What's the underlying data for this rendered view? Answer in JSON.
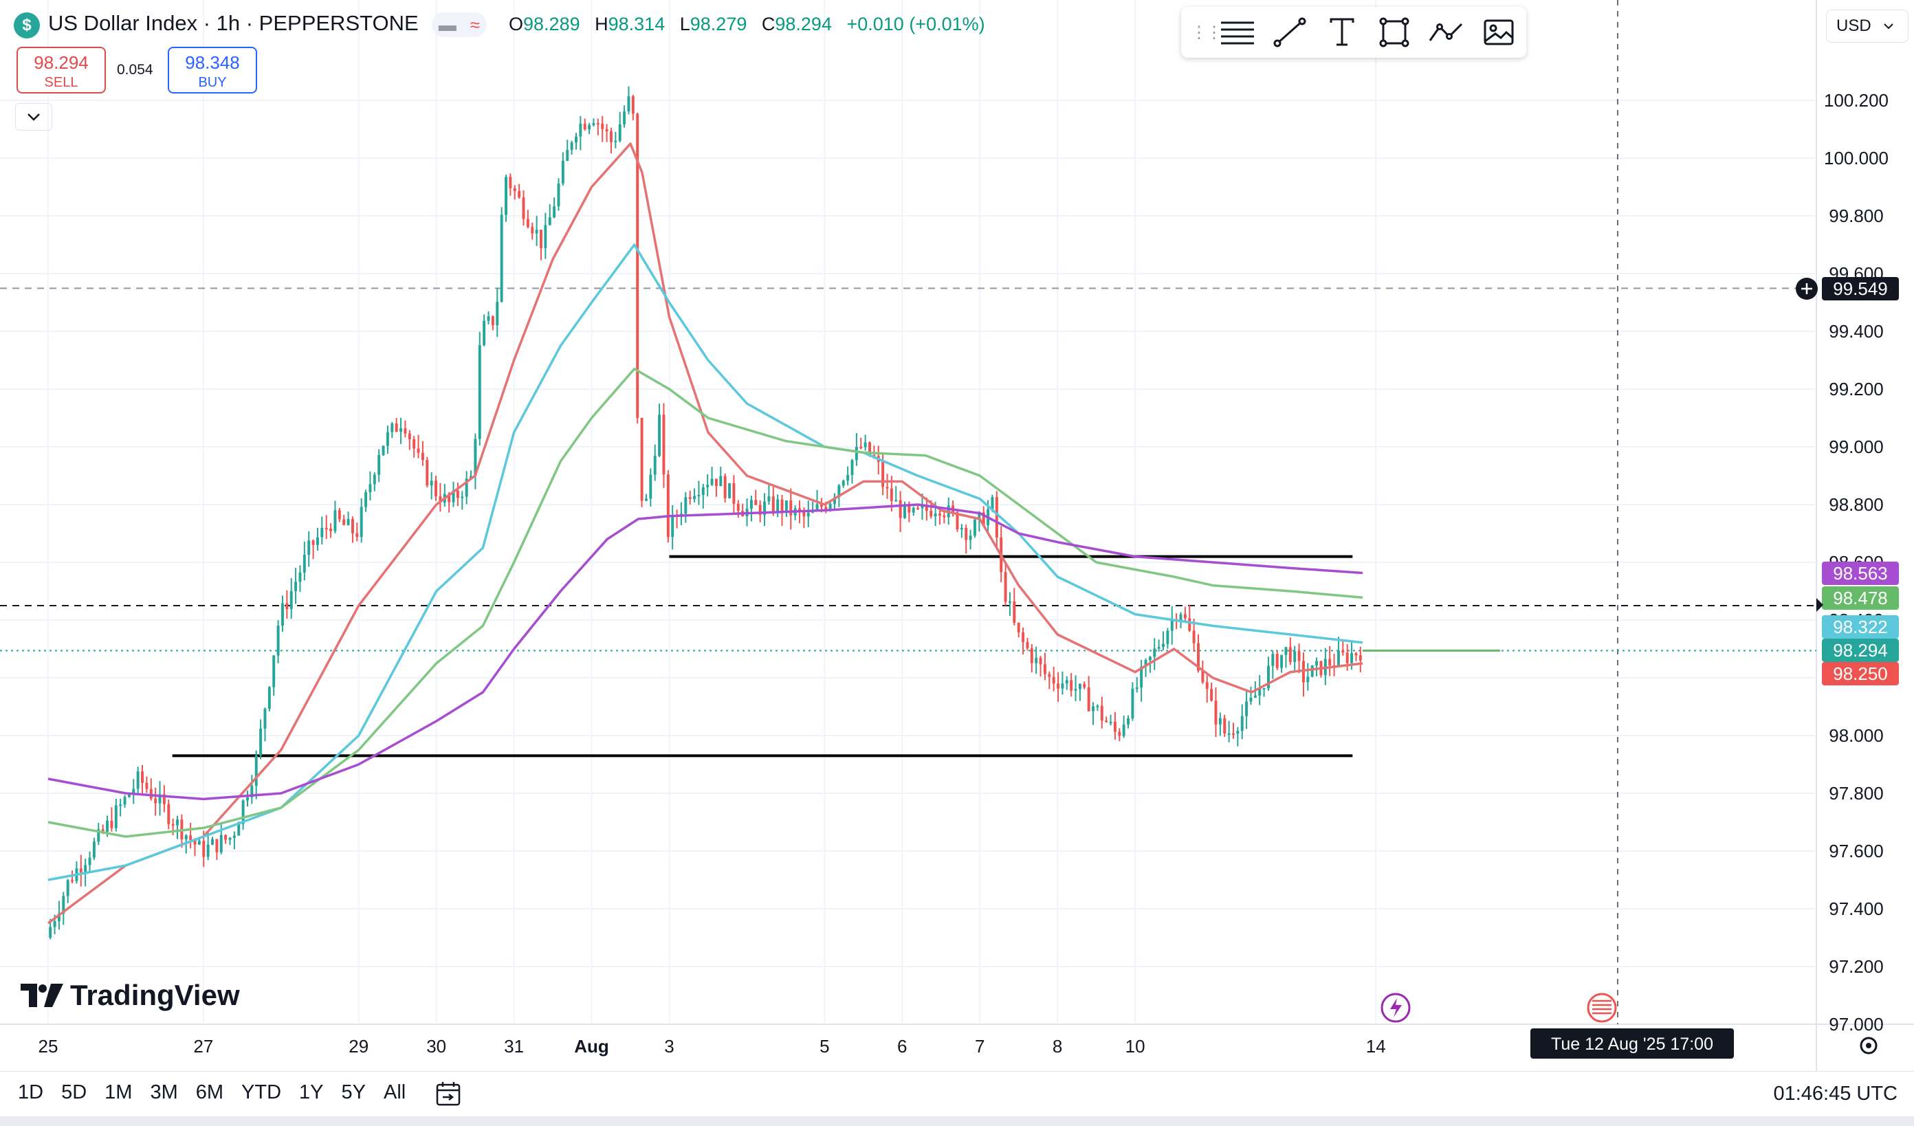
{
  "header": {
    "logo_glyph": "$",
    "title": "US Dollar Index · 1h · PEPPERSTONE",
    "mode_icons": [
      "minus-icon",
      "approx-icon"
    ],
    "ohlc": {
      "o_label": "O",
      "o": "98.289",
      "h_label": "H",
      "h": "98.314",
      "l_label": "L",
      "l": "98.279",
      "c_label": "C",
      "c": "98.294",
      "change": "+0.010 (+0.01%)"
    },
    "sell": {
      "price": "98.294",
      "label": "SELL"
    },
    "buy": {
      "price": "98.348",
      "label": "BUY"
    },
    "spread": "0.054",
    "currency": "USD"
  },
  "drawing_toolbar": [
    "grip-icon",
    "lines-icon",
    "trendline-icon",
    "text-icon",
    "rectangle-icon",
    "path-icon",
    "image-icon"
  ],
  "colors": {
    "up": "#26a69a",
    "down": "#ef5350",
    "ema_red": "#e57373",
    "ema_cyan": "#5bc8dc",
    "ema_green": "#81c784",
    "ema_purple": "#a64dd1"
  },
  "price_axis": {
    "labels": [
      "100.200",
      "100.000",
      "99.800",
      "99.600",
      "99.400",
      "99.200",
      "99.000",
      "98.800",
      "98.600",
      "98.400",
      "98.200",
      "98.000",
      "97.800",
      "97.600",
      "97.400",
      "97.200",
      "97.000"
    ],
    "tags": [
      {
        "value": "99.549",
        "color": "#131722"
      },
      {
        "value": "98.563",
        "color": "#a64dd1"
      },
      {
        "value": "98.478",
        "color": "#66bb6a"
      },
      {
        "value": "98.322",
        "color": "#5bc8dc"
      },
      {
        "value": "98.294",
        "color": "#26a69a"
      },
      {
        "value": "98.250",
        "color": "#ef5350"
      }
    ]
  },
  "time_axis": {
    "labels": [
      "25",
      "27",
      "29",
      "30",
      "31",
      "Aug",
      "3",
      "5",
      "6",
      "7",
      "8",
      "10",
      "14"
    ],
    "crosshair_label": "Tue 12 Aug '25   17:00"
  },
  "bottom_bar": {
    "ranges": [
      "1D",
      "5D",
      "1M",
      "3M",
      "6M",
      "YTD",
      "1Y",
      "5Y",
      "All"
    ],
    "clock": "01:46:45 UTC"
  },
  "branding": "TradingView",
  "chart_data": {
    "type": "candlestick",
    "symbol": "US Dollar Index",
    "interval": "1h",
    "ylim": [
      96.9,
      100.35
    ],
    "price_points": [
      [
        25,
        97.3
      ],
      [
        25.3,
        97.5
      ],
      [
        25.7,
        97.65
      ],
      [
        26.2,
        97.85
      ],
      [
        26.6,
        97.72
      ],
      [
        27,
        97.6
      ],
      [
        27.4,
        97.65
      ],
      [
        27.7,
        97.9
      ],
      [
        28,
        98.4
      ],
      [
        28.4,
        98.65
      ],
      [
        28.7,
        98.75
      ],
      [
        29,
        98.7
      ],
      [
        29.3,
        99.0
      ],
      [
        29.6,
        99.1
      ],
      [
        29.8,
        98.95
      ],
      [
        30,
        98.85
      ],
      [
        30.2,
        98.8
      ],
      [
        30.5,
        98.9
      ],
      [
        30.6,
        99.4
      ],
      [
        30.8,
        99.45
      ],
      [
        30.9,
        99.95
      ],
      [
        31.1,
        99.85
      ],
      [
        31.4,
        99.7
      ],
      [
        31.6,
        99.9
      ],
      [
        31.8,
        100.1
      ],
      [
        32.05,
        100.15
      ],
      [
        32.3,
        100.05
      ],
      [
        32.5,
        100.2
      ],
      [
        32.6,
        100.1
      ],
      [
        32.62,
        99.0
      ],
      [
        32.7,
        98.75
      ],
      [
        32.9,
        99.1
      ],
      [
        33.0,
        98.7
      ],
      [
        33.3,
        98.85
      ],
      [
        33.6,
        98.9
      ],
      [
        34.0,
        98.78
      ],
      [
        34.4,
        98.8
      ],
      [
        34.8,
        98.75
      ],
      [
        35.1,
        98.82
      ],
      [
        35.3,
        98.92
      ],
      [
        35.5,
        99.0
      ],
      [
        35.7,
        98.95
      ],
      [
        35.8,
        98.85
      ],
      [
        36.1,
        98.75
      ],
      [
        36.5,
        98.8
      ],
      [
        36.9,
        98.7
      ],
      [
        37.2,
        98.8
      ],
      [
        37.3,
        98.55
      ],
      [
        37.5,
        98.35
      ],
      [
        37.9,
        98.2
      ],
      [
        38.2,
        98.18
      ],
      [
        38.5,
        98.1
      ],
      [
        38.8,
        98.0
      ],
      [
        39.1,
        98.2
      ],
      [
        39.4,
        98.35
      ],
      [
        39.6,
        98.45
      ],
      [
        39.8,
        98.3
      ],
      [
        40.0,
        98.1
      ],
      [
        40.2,
        98.0
      ],
      [
        40.5,
        98.1
      ],
      [
        40.8,
        98.25
      ],
      [
        41.0,
        98.3
      ],
      [
        41.2,
        98.2
      ],
      [
        41.5,
        98.25
      ],
      [
        41.8,
        98.28
      ],
      [
        41.93,
        98.294
      ]
    ],
    "series": [
      {
        "name": "",
        "type": "line",
        "color": "#e57373",
        "points": [
          [
            25,
            97.35
          ],
          [
            26,
            97.55
          ],
          [
            27,
            97.65
          ],
          [
            28,
            97.95
          ],
          [
            29,
            98.45
          ],
          [
            30,
            98.8
          ],
          [
            30.5,
            98.9
          ],
          [
            31,
            99.3
          ],
          [
            31.5,
            99.65
          ],
          [
            32,
            99.9
          ],
          [
            32.5,
            100.05
          ],
          [
            32.65,
            99.95
          ],
          [
            33,
            99.45
          ],
          [
            33.5,
            99.05
          ],
          [
            34,
            98.9
          ],
          [
            35,
            98.8
          ],
          [
            35.5,
            98.88
          ],
          [
            36,
            98.88
          ],
          [
            36.5,
            98.78
          ],
          [
            37,
            98.75
          ],
          [
            37.5,
            98.52
          ],
          [
            38,
            98.35
          ],
          [
            39,
            98.22
          ],
          [
            39.5,
            98.3
          ],
          [
            40,
            98.2
          ],
          [
            40.5,
            98.15
          ],
          [
            41,
            98.22
          ],
          [
            41.93,
            98.25
          ]
        ]
      },
      {
        "name": "",
        "type": "line",
        "color": "#5bc8dc",
        "points": [
          [
            25,
            97.5
          ],
          [
            26,
            97.55
          ],
          [
            27,
            97.65
          ],
          [
            28,
            97.75
          ],
          [
            29,
            98.0
          ],
          [
            30,
            98.5
          ],
          [
            30.6,
            98.65
          ],
          [
            31,
            99.05
          ],
          [
            31.6,
            99.35
          ],
          [
            32,
            99.5
          ],
          [
            32.55,
            99.7
          ],
          [
            33,
            99.5
          ],
          [
            33.5,
            99.3
          ],
          [
            34,
            99.15
          ],
          [
            35,
            99.0
          ],
          [
            35.5,
            98.98
          ],
          [
            36.2,
            98.9
          ],
          [
            37,
            98.82
          ],
          [
            37.5,
            98.7
          ],
          [
            38,
            98.55
          ],
          [
            39,
            98.42
          ],
          [
            39.5,
            98.4
          ],
          [
            40,
            98.38
          ],
          [
            41,
            98.35
          ],
          [
            41.93,
            98.322
          ]
        ]
      },
      {
        "name": "",
        "type": "line",
        "color": "#81c784",
        "points": [
          [
            25,
            97.7
          ],
          [
            26,
            97.65
          ],
          [
            27,
            97.68
          ],
          [
            28,
            97.75
          ],
          [
            29,
            97.95
          ],
          [
            30,
            98.25
          ],
          [
            30.6,
            98.38
          ],
          [
            31,
            98.6
          ],
          [
            31.6,
            98.95
          ],
          [
            32,
            99.1
          ],
          [
            32.55,
            99.27
          ],
          [
            33,
            99.2
          ],
          [
            33.5,
            99.1
          ],
          [
            34.5,
            99.02
          ],
          [
            35.5,
            98.98
          ],
          [
            36.3,
            98.97
          ],
          [
            37,
            98.9
          ],
          [
            37.5,
            98.8
          ],
          [
            38,
            98.7
          ],
          [
            38.5,
            98.6
          ],
          [
            39.5,
            98.55
          ],
          [
            40,
            98.52
          ],
          [
            41,
            98.5
          ],
          [
            41.93,
            98.478
          ]
        ]
      },
      {
        "name": "",
        "type": "line",
        "color": "#a64dd1",
        "points": [
          [
            25,
            97.85
          ],
          [
            26,
            97.8
          ],
          [
            27,
            97.78
          ],
          [
            28,
            97.8
          ],
          [
            29,
            97.9
          ],
          [
            30,
            98.05
          ],
          [
            30.6,
            98.15
          ],
          [
            31,
            98.3
          ],
          [
            31.6,
            98.5
          ],
          [
            32.2,
            98.68
          ],
          [
            32.6,
            98.75
          ],
          [
            33,
            98.76
          ],
          [
            34,
            98.77
          ],
          [
            35,
            98.78
          ],
          [
            36.2,
            98.8
          ],
          [
            37,
            98.77
          ],
          [
            37.5,
            98.7
          ],
          [
            38,
            98.67
          ],
          [
            39,
            98.62
          ],
          [
            40,
            98.6
          ],
          [
            41,
            98.58
          ],
          [
            41.93,
            98.563
          ]
        ]
      }
    ],
    "horizontal_lines": [
      {
        "value": 98.62,
        "x_start": 33.0,
        "x_end": 41.8,
        "style": "solid",
        "color": "#000000"
      },
      {
        "value": 97.93,
        "x_start": 26.6,
        "x_end": 41.8,
        "style": "solid",
        "color": "#000000"
      },
      {
        "value": 98.45,
        "style": "dashed",
        "color": "#131722"
      },
      {
        "value": 99.549,
        "style": "dashed",
        "color": "#9598a1"
      },
      {
        "value": 98.294,
        "style": "dotted",
        "color": "#26a69a"
      }
    ],
    "x_ticks": [
      [
        25,
        "25"
      ],
      [
        27,
        "27"
      ],
      [
        29,
        "29"
      ],
      [
        30,
        "30"
      ],
      [
        31,
        "31"
      ],
      [
        32,
        "Aug"
      ],
      [
        33,
        "3"
      ],
      [
        35,
        "5"
      ],
      [
        36,
        "6"
      ],
      [
        37,
        "7"
      ],
      [
        38,
        "8"
      ],
      [
        39,
        "10"
      ],
      [
        42.1,
        "14"
      ]
    ],
    "crosshair_x": 41.85
  }
}
